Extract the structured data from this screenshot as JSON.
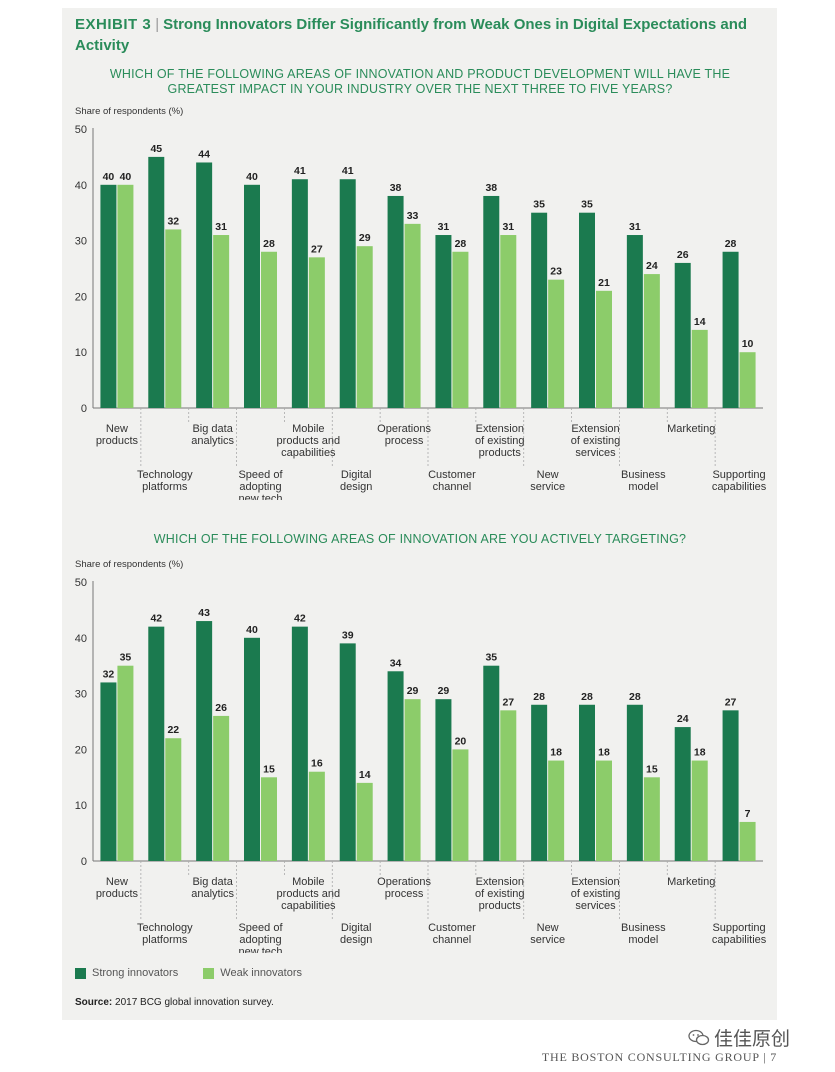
{
  "exhibit": {
    "label": "EXHIBIT 3",
    "separator": "|",
    "title": "Strong Innovators Differ Significantly from Weak Ones in Digital Expectations and Activity"
  },
  "legend": {
    "strong": "Strong innovators",
    "weak": "Weak innovators"
  },
  "colors": {
    "strong": "#1b7a4f",
    "weak": "#8ccc6a",
    "title": "#2a8c5a"
  },
  "source": {
    "label": "Source:",
    "text": "2017 BCG global innovation survey."
  },
  "footer": {
    "company": "THE BOSTON CONSULTING GROUP",
    "separator": "|",
    "page": "7"
  },
  "watermark": {
    "text": "佳佳原创",
    "icon": "wechat-icon"
  },
  "chart_data": [
    {
      "type": "bar",
      "title": "WHICH OF THE FOLLOWING AREAS OF INNOVATION AND PRODUCT DEVELOPMENT WILL HAVE THE GREATEST IMPACT IN YOUR INDUSTRY OVER THE NEXT THREE TO FIVE YEARS?",
      "ylabel": "Share of respondents (%)",
      "ylim": [
        0,
        50
      ],
      "yticks": [
        "0",
        "10",
        "20",
        "30",
        "40",
        "50"
      ],
      "categories": [
        [
          "New",
          "products"
        ],
        [
          "Technology",
          "platforms"
        ],
        [
          "Big data",
          "analytics"
        ],
        [
          "Speed of",
          "adopting",
          "new tech"
        ],
        [
          "Mobile",
          "products and",
          "capabilities"
        ],
        [
          "Digital",
          "design"
        ],
        [
          "Operations",
          "process"
        ],
        [
          "Customer",
          "channel"
        ],
        [
          "Extension",
          "of existing",
          "products"
        ],
        [
          "New",
          "service"
        ],
        [
          "Extension",
          "of existing",
          "services"
        ],
        [
          "Business",
          "model"
        ],
        [
          "Marketing"
        ],
        [
          "Supporting",
          "capabilities"
        ]
      ],
      "series": [
        {
          "name": "Strong innovators",
          "values": [
            40,
            45,
            44,
            40,
            41,
            41,
            38,
            31,
            38,
            35,
            35,
            31,
            26,
            28
          ]
        },
        {
          "name": "Weak innovators",
          "values": [
            40,
            32,
            31,
            28,
            27,
            29,
            33,
            28,
            31,
            23,
            21,
            24,
            14,
            10
          ]
        }
      ]
    },
    {
      "type": "bar",
      "title": "WHICH OF THE FOLLOWING AREAS OF INNOVATION ARE YOU ACTIVELY TARGETING?",
      "ylabel": "Share of respondents (%)",
      "ylim": [
        0,
        50
      ],
      "yticks": [
        "0",
        "10",
        "20",
        "30",
        "40",
        "50"
      ],
      "categories": [
        [
          "New",
          "products"
        ],
        [
          "Technology",
          "platforms"
        ],
        [
          "Big data",
          "analytics"
        ],
        [
          "Speed of",
          "adopting",
          "new tech"
        ],
        [
          "Mobile",
          "products and",
          "capabilities"
        ],
        [
          "Digital",
          "design"
        ],
        [
          "Operations",
          "process"
        ],
        [
          "Customer",
          "channel"
        ],
        [
          "Extension",
          "of existing",
          "products"
        ],
        [
          "New",
          "service"
        ],
        [
          "Extension",
          "of existing",
          "services"
        ],
        [
          "Business",
          "model"
        ],
        [
          "Marketing"
        ],
        [
          "Supporting",
          "capabilities"
        ]
      ],
      "series": [
        {
          "name": "Strong innovators",
          "values": [
            32,
            42,
            43,
            40,
            42,
            39,
            34,
            29,
            35,
            28,
            28,
            28,
            24,
            27
          ]
        },
        {
          "name": "Weak innovators",
          "values": [
            35,
            22,
            26,
            15,
            16,
            14,
            29,
            20,
            27,
            18,
            18,
            15,
            18,
            7
          ]
        }
      ]
    }
  ]
}
